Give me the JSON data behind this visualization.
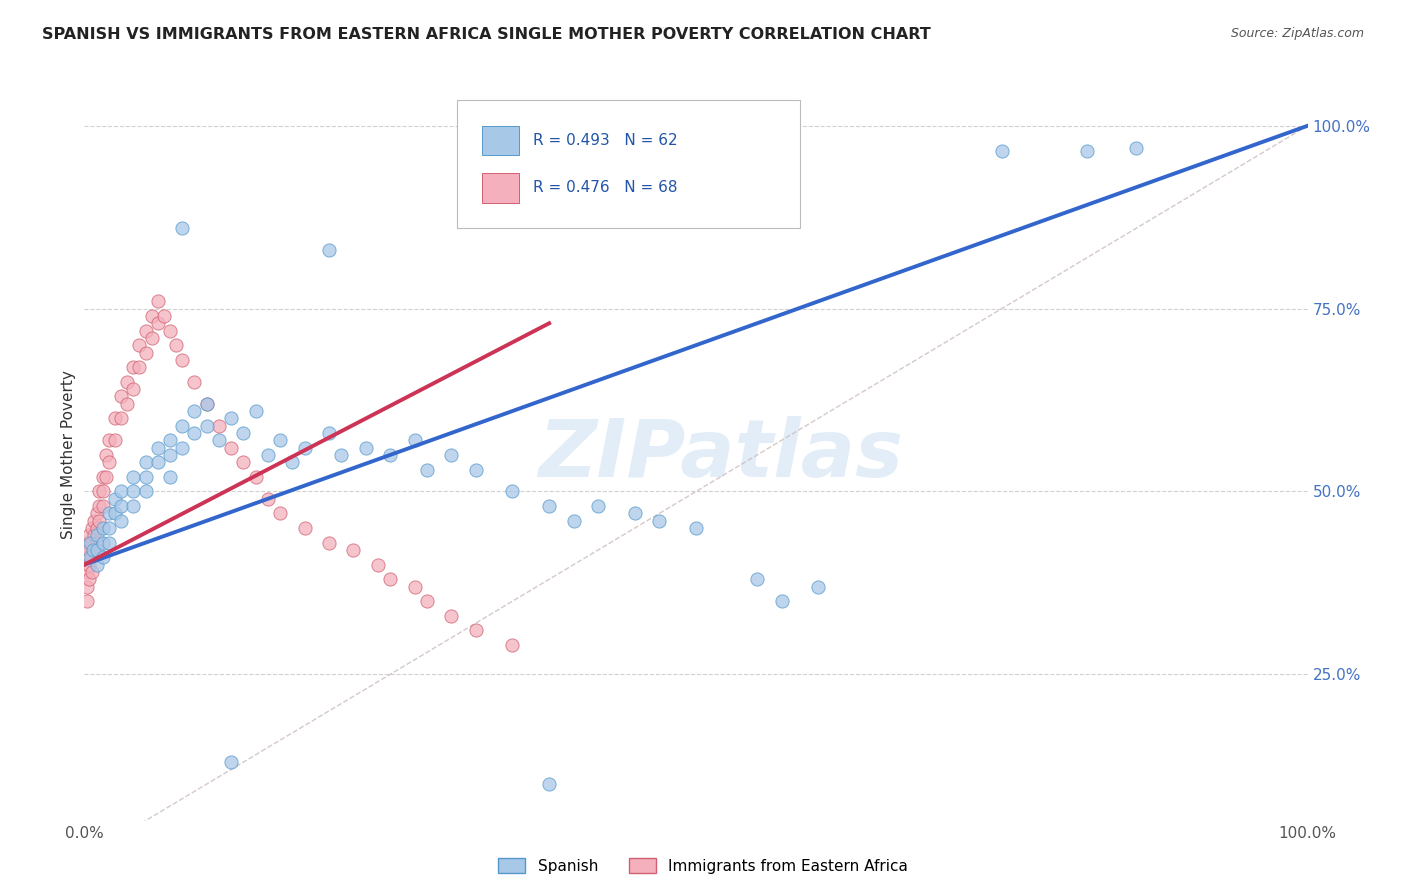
{
  "title": "SPANISH VS IMMIGRANTS FROM EASTERN AFRICA SINGLE MOTHER POVERTY CORRELATION CHART",
  "source": "Source: ZipAtlas.com",
  "ylabel": "Single Mother Poverty",
  "xlim": [
    0,
    1
  ],
  "ylim": [
    0.05,
    1.05
  ],
  "ytick_positions": [
    0.25,
    0.5,
    0.75,
    1.0
  ],
  "ytick_labels": [
    "25.0%",
    "50.0%",
    "75.0%",
    "100.0%"
  ],
  "xtick_positions": [
    0.0,
    1.0
  ],
  "xtick_labels": [
    "0.0%",
    "100.0%"
  ],
  "watermark_text": "ZIPatlas",
  "background_color": "#ffffff",
  "blue_color": "#a8c8e8",
  "blue_edge": "#5599cc",
  "pink_color": "#f4b0bc",
  "pink_edge": "#d06070",
  "blue_line_color": "#3366cc",
  "pink_line_color": "#cc3355",
  "ref_line_color": "#ccbbbb",
  "grid_color": "#cccccc",
  "ytick_color": "#4472c4",
  "xtick_color": "#555555",
  "blue_scatter": [
    [
      0.005,
      0.43
    ],
    [
      0.005,
      0.41
    ],
    [
      0.007,
      0.42
    ],
    [
      0.01,
      0.44
    ],
    [
      0.01,
      0.42
    ],
    [
      0.01,
      0.4
    ],
    [
      0.015,
      0.45
    ],
    [
      0.015,
      0.43
    ],
    [
      0.015,
      0.41
    ],
    [
      0.02,
      0.47
    ],
    [
      0.02,
      0.45
    ],
    [
      0.02,
      0.43
    ],
    [
      0.025,
      0.49
    ],
    [
      0.025,
      0.47
    ],
    [
      0.03,
      0.5
    ],
    [
      0.03,
      0.48
    ],
    [
      0.03,
      0.46
    ],
    [
      0.04,
      0.52
    ],
    [
      0.04,
      0.5
    ],
    [
      0.04,
      0.48
    ],
    [
      0.05,
      0.54
    ],
    [
      0.05,
      0.52
    ],
    [
      0.05,
      0.5
    ],
    [
      0.06,
      0.56
    ],
    [
      0.06,
      0.54
    ],
    [
      0.07,
      0.57
    ],
    [
      0.07,
      0.55
    ],
    [
      0.07,
      0.52
    ],
    [
      0.08,
      0.59
    ],
    [
      0.08,
      0.56
    ],
    [
      0.09,
      0.61
    ],
    [
      0.09,
      0.58
    ],
    [
      0.1,
      0.62
    ],
    [
      0.1,
      0.59
    ],
    [
      0.11,
      0.57
    ],
    [
      0.12,
      0.6
    ],
    [
      0.13,
      0.58
    ],
    [
      0.14,
      0.61
    ],
    [
      0.15,
      0.55
    ],
    [
      0.16,
      0.57
    ],
    [
      0.17,
      0.54
    ],
    [
      0.18,
      0.56
    ],
    [
      0.2,
      0.58
    ],
    [
      0.21,
      0.55
    ],
    [
      0.23,
      0.56
    ],
    [
      0.25,
      0.55
    ],
    [
      0.27,
      0.57
    ],
    [
      0.28,
      0.53
    ],
    [
      0.3,
      0.55
    ],
    [
      0.32,
      0.53
    ],
    [
      0.35,
      0.5
    ],
    [
      0.38,
      0.48
    ],
    [
      0.4,
      0.46
    ],
    [
      0.42,
      0.48
    ],
    [
      0.45,
      0.47
    ],
    [
      0.47,
      0.46
    ],
    [
      0.5,
      0.45
    ],
    [
      0.55,
      0.38
    ],
    [
      0.57,
      0.35
    ],
    [
      0.6,
      0.37
    ],
    [
      0.75,
      0.965
    ],
    [
      0.82,
      0.965
    ],
    [
      0.86,
      0.97
    ],
    [
      0.08,
      0.86
    ],
    [
      0.2,
      0.83
    ],
    [
      0.12,
      0.13
    ],
    [
      0.38,
      0.1
    ]
  ],
  "pink_scatter": [
    [
      0.002,
      0.43
    ],
    [
      0.002,
      0.41
    ],
    [
      0.002,
      0.39
    ],
    [
      0.002,
      0.37
    ],
    [
      0.002,
      0.35
    ],
    [
      0.004,
      0.44
    ],
    [
      0.004,
      0.42
    ],
    [
      0.004,
      0.4
    ],
    [
      0.004,
      0.38
    ],
    [
      0.006,
      0.45
    ],
    [
      0.006,
      0.43
    ],
    [
      0.006,
      0.41
    ],
    [
      0.006,
      0.39
    ],
    [
      0.008,
      0.46
    ],
    [
      0.008,
      0.44
    ],
    [
      0.008,
      0.42
    ],
    [
      0.01,
      0.47
    ],
    [
      0.01,
      0.45
    ],
    [
      0.01,
      0.43
    ],
    [
      0.012,
      0.5
    ],
    [
      0.012,
      0.48
    ],
    [
      0.012,
      0.46
    ],
    [
      0.015,
      0.52
    ],
    [
      0.015,
      0.5
    ],
    [
      0.015,
      0.48
    ],
    [
      0.018,
      0.55
    ],
    [
      0.018,
      0.52
    ],
    [
      0.02,
      0.57
    ],
    [
      0.02,
      0.54
    ],
    [
      0.025,
      0.6
    ],
    [
      0.025,
      0.57
    ],
    [
      0.03,
      0.63
    ],
    [
      0.03,
      0.6
    ],
    [
      0.035,
      0.65
    ],
    [
      0.035,
      0.62
    ],
    [
      0.04,
      0.67
    ],
    [
      0.04,
      0.64
    ],
    [
      0.045,
      0.7
    ],
    [
      0.045,
      0.67
    ],
    [
      0.05,
      0.72
    ],
    [
      0.05,
      0.69
    ],
    [
      0.055,
      0.74
    ],
    [
      0.055,
      0.71
    ],
    [
      0.06,
      0.76
    ],
    [
      0.06,
      0.73
    ],
    [
      0.065,
      0.74
    ],
    [
      0.07,
      0.72
    ],
    [
      0.075,
      0.7
    ],
    [
      0.08,
      0.68
    ],
    [
      0.09,
      0.65
    ],
    [
      0.1,
      0.62
    ],
    [
      0.11,
      0.59
    ],
    [
      0.12,
      0.56
    ],
    [
      0.13,
      0.54
    ],
    [
      0.14,
      0.52
    ],
    [
      0.15,
      0.49
    ],
    [
      0.16,
      0.47
    ],
    [
      0.18,
      0.45
    ],
    [
      0.2,
      0.43
    ],
    [
      0.22,
      0.42
    ],
    [
      0.24,
      0.4
    ],
    [
      0.25,
      0.38
    ],
    [
      0.27,
      0.37
    ],
    [
      0.28,
      0.35
    ],
    [
      0.3,
      0.33
    ],
    [
      0.32,
      0.31
    ],
    [
      0.35,
      0.29
    ]
  ],
  "blue_line": [
    [
      0.0,
      0.4
    ],
    [
      1.0,
      1.0
    ]
  ],
  "pink_line": [
    [
      0.0,
      0.4
    ],
    [
      0.38,
      0.73
    ]
  ],
  "ref_line": [
    [
      0.0,
      0.0
    ],
    [
      1.0,
      1.0
    ]
  ]
}
